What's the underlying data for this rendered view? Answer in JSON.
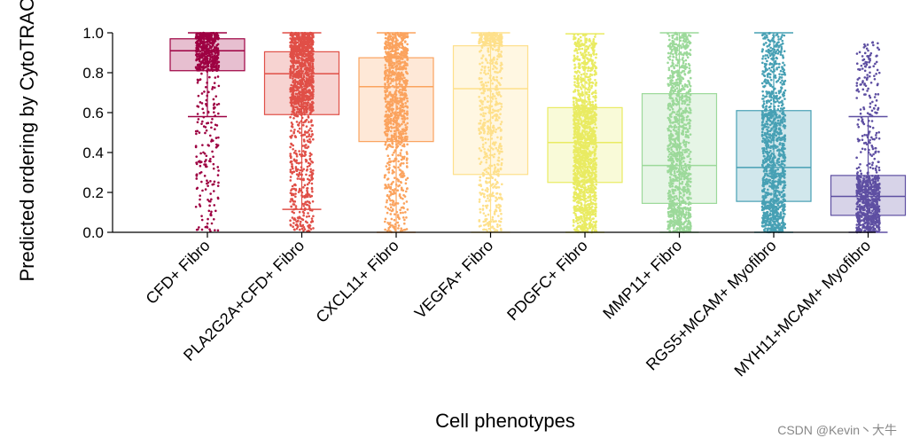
{
  "chart_data": {
    "type": "box",
    "title": "",
    "xlabel": "Cell phenotypes",
    "ylabel": "Predicted ordering by CytoTRACE",
    "ylim": [
      0.0,
      1.0
    ],
    "yticks": [
      "0.0",
      "0.2",
      "0.4",
      "0.6",
      "0.8",
      "1.0"
    ],
    "grid": false,
    "legend": "none",
    "jitter_points_overlaid": true,
    "categories": [
      "CFD+ Fibro",
      "PLA2G2A+CFD+ Fibro",
      "CXCL11+ Fibro",
      "VEGFA+ Fibro",
      "PDGFC+ Fibro",
      "MMP11+ Fibro",
      "RGS5+MCAM+ Myofibro",
      "MYH11+MCAM+ Myofibro"
    ],
    "colors": [
      "#9e0142",
      "#e04f47",
      "#fba35e",
      "#fee08b",
      "#e9eb62",
      "#9cd99a",
      "#47a0b4",
      "#5e4fa2"
    ],
    "boxes": [
      {
        "whisker_low": 0.58,
        "q1": 0.81,
        "median": 0.91,
        "q3": 0.97,
        "whisker_high": 1.0,
        "min": 0.0,
        "point_density": 0.35
      },
      {
        "whisker_low": 0.115,
        "q1": 0.59,
        "median": 0.795,
        "q3": 0.905,
        "whisker_high": 1.0,
        "min": 0.0,
        "point_density": 0.85
      },
      {
        "whisker_low": 0.0,
        "q1": 0.455,
        "median": 0.73,
        "q3": 0.875,
        "whisker_high": 1.0,
        "min": 0.0,
        "point_density": 0.6
      },
      {
        "whisker_low": 0.0,
        "q1": 0.29,
        "median": 0.72,
        "q3": 0.935,
        "whisker_high": 1.0,
        "min": 0.0,
        "point_density": 0.35
      },
      {
        "whisker_low": 0.0,
        "q1": 0.25,
        "median": 0.45,
        "q3": 0.625,
        "whisker_high": 0.995,
        "min": 0.0,
        "point_density": 1.0
      },
      {
        "whisker_low": 0.0,
        "q1": 0.145,
        "median": 0.335,
        "q3": 0.695,
        "whisker_high": 1.0,
        "min": 0.0,
        "point_density": 0.7
      },
      {
        "whisker_low": 0.0,
        "q1": 0.155,
        "median": 0.325,
        "q3": 0.61,
        "whisker_high": 1.0,
        "min": 0.0,
        "point_density": 0.75
      },
      {
        "whisker_low": 0.0,
        "q1": 0.085,
        "median": 0.18,
        "q3": 0.285,
        "whisker_high": 0.58,
        "min": 0.0,
        "max": 0.955,
        "point_density": 0.45
      }
    ]
  },
  "watermark": "CSDN @Kevin丶大牛"
}
